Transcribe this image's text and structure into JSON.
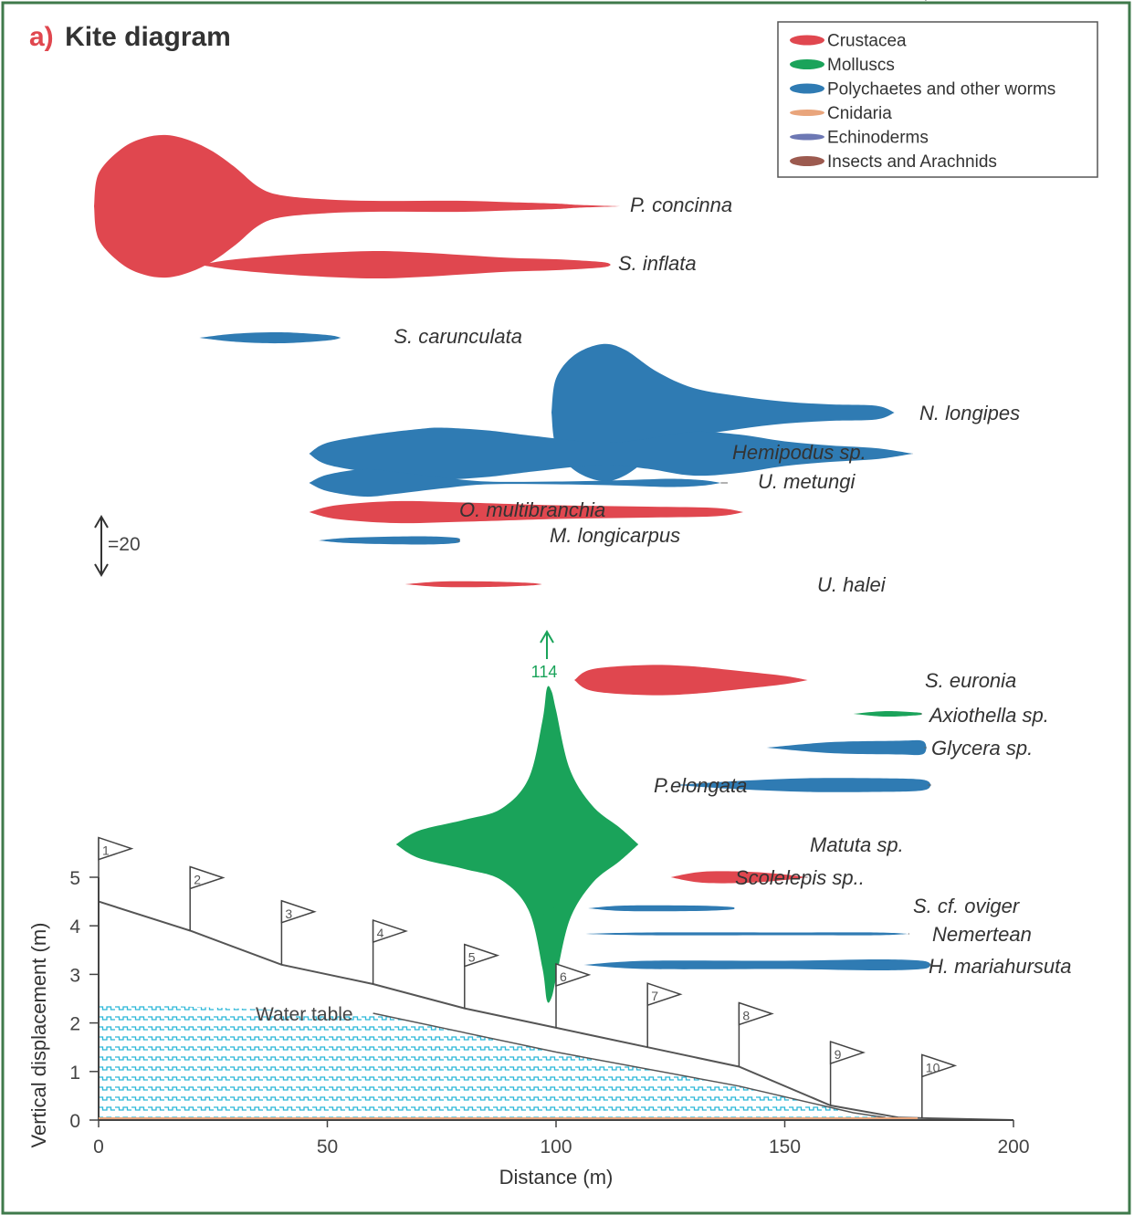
{
  "figure": {
    "panel_letter": "a)",
    "title": "Kite diagram"
  },
  "colors": {
    "Crustacea": "#e0474f",
    "Molluscs": "#1aa35a",
    "Polychaetes and other worms": "#2f7bb3",
    "Cnidaria": "#e9a57c",
    "Echinoderms": "#6d78b4",
    "Insects and Arachnids": "#9c5a4f",
    "water": "#2bb7d8",
    "beach": "#555555",
    "frame": "#3f7a4b"
  },
  "legend": {
    "items": [
      {
        "label": "Crustacea",
        "group": "Crustacea"
      },
      {
        "label": "Molluscs",
        "group": "Molluscs"
      },
      {
        "label": "Polychaetes and other worms",
        "group": "Polychaetes and other worms"
      },
      {
        "label": "Cnidaria",
        "group": "Cnidaria"
      },
      {
        "label": "Echinoderms",
        "group": "Echinoderms"
      },
      {
        "label": "Insects and Arachnids",
        "group": "Insects and Arachnids"
      }
    ]
  },
  "scale_bar": {
    "label": "=20",
    "value": 20
  },
  "max_annotation": {
    "label": "114",
    "species": "P.elongata"
  },
  "water_table_label": "Water table",
  "chart_data": {
    "type": "kite",
    "xlabel": "Distance (m)",
    "ylabel": "Vertical displacement (m)",
    "xlim": [
      0,
      200
    ],
    "ylim": [
      0,
      5
    ],
    "x_ticks": [
      "0",
      "50",
      "100",
      "150",
      "200"
    ],
    "y_ticks": [
      "0",
      "1",
      "2",
      "3",
      "4",
      "5"
    ],
    "species": [
      {
        "label": "P. concinna",
        "group": "Crustacea",
        "profile": [
          [
            -1,
            0
          ],
          [
            0,
            24
          ],
          [
            5,
            42
          ],
          [
            10,
            50
          ],
          [
            15,
            52
          ],
          [
            20,
            48
          ],
          [
            25,
            40
          ],
          [
            30,
            28
          ],
          [
            35,
            14
          ],
          [
            40,
            8
          ],
          [
            50,
            5
          ],
          [
            60,
            4
          ],
          [
            70,
            4
          ],
          [
            80,
            4
          ],
          [
            90,
            3
          ],
          [
            100,
            2
          ],
          [
            105,
            1
          ],
          [
            114,
            0
          ]
        ]
      },
      {
        "label": "S. inflata",
        "group": "Crustacea",
        "profile": [
          [
            22,
            0
          ],
          [
            30,
            4
          ],
          [
            45,
            8
          ],
          [
            60,
            10
          ],
          [
            70,
            9
          ],
          [
            80,
            7
          ],
          [
            90,
            5
          ],
          [
            100,
            4
          ],
          [
            110,
            2
          ],
          [
            112,
            0
          ]
        ]
      },
      {
        "label": "S. carunculata",
        "group": "Polychaetes and other worms",
        "profile": [
          [
            22,
            0
          ],
          [
            30,
            3
          ],
          [
            40,
            4
          ],
          [
            50,
            2
          ],
          [
            53,
            0
          ]
        ]
      },
      {
        "label": "S. carunculata",
        "group": "Polychaetes and other worms",
        "profile": [
          [
            99,
            0
          ],
          [
            100,
            25
          ],
          [
            104,
            42
          ],
          [
            110,
            50
          ],
          [
            115,
            46
          ],
          [
            122,
            30
          ],
          [
            130,
            18
          ],
          [
            140,
            12
          ],
          [
            150,
            8
          ],
          [
            160,
            6
          ],
          [
            170,
            5
          ],
          [
            174,
            0
          ]
        ]
      },
      {
        "label": "N. longipes",
        "group": "Polychaetes and other worms",
        "profile": [
          [
            46,
            0
          ],
          [
            50,
            8
          ],
          [
            60,
            14
          ],
          [
            70,
            18
          ],
          [
            75,
            19
          ],
          [
            85,
            17
          ],
          [
            95,
            13
          ],
          [
            110,
            8
          ],
          [
            120,
            11
          ],
          [
            130,
            16
          ],
          [
            140,
            14
          ],
          [
            150,
            9
          ],
          [
            160,
            6
          ],
          [
            170,
            4
          ],
          [
            178,
            0
          ]
        ]
      },
      {
        "label": "Hemipodus sp.",
        "group": "Polychaetes and other worms",
        "profile": [
          [
            46,
            0
          ],
          [
            50,
            6
          ],
          [
            58,
            10
          ],
          [
            65,
            8
          ],
          [
            75,
            4
          ],
          [
            85,
            1
          ],
          [
            100,
            1
          ],
          [
            115,
            2
          ],
          [
            125,
            3
          ],
          [
            132,
            2
          ],
          [
            136,
            0
          ]
        ]
      },
      {
        "label": "U. metungi",
        "group": "Crustacea",
        "profile": [
          [
            46,
            0
          ],
          [
            52,
            5
          ],
          [
            65,
            8
          ],
          [
            80,
            7
          ],
          [
            100,
            5
          ],
          [
            120,
            4
          ],
          [
            135,
            3
          ],
          [
            141,
            0
          ]
        ]
      },
      {
        "label": "O. multibranchia",
        "group": "Polychaetes and other worms",
        "profile": [
          [
            48,
            0
          ],
          [
            55,
            2
          ],
          [
            70,
            3
          ],
          [
            78,
            2
          ],
          [
            79,
            0
          ]
        ]
      },
      {
        "label": "M. longicarpus",
        "group": "Crustacea",
        "profile": [
          [
            67,
            0
          ],
          [
            75,
            2
          ],
          [
            85,
            2
          ],
          [
            94,
            1
          ],
          [
            97,
            0
          ]
        ]
      },
      {
        "label": "U. halei",
        "group": "Crustacea",
        "profile": [
          [
            104,
            0
          ],
          [
            108,
            8
          ],
          [
            120,
            11
          ],
          [
            130,
            10
          ],
          [
            142,
            6
          ],
          [
            150,
            3
          ],
          [
            155,
            0
          ]
        ]
      },
      {
        "label": "S. euronia",
        "group": "Molluscs",
        "profile": [
          [
            165,
            0
          ],
          [
            172,
            2
          ],
          [
            179,
            1
          ],
          [
            180,
            0
          ]
        ]
      },
      {
        "label": "Axiothella sp.",
        "group": "Polychaetes and other worms",
        "profile": [
          [
            146,
            0
          ],
          [
            160,
            4
          ],
          [
            175,
            5
          ],
          [
            180,
            5
          ],
          [
            181,
            0
          ]
        ]
      },
      {
        "label": "Glycera sp.",
        "group": "Polychaetes and other worms",
        "profile": [
          [
            126,
            0
          ],
          [
            140,
            3
          ],
          [
            155,
            5
          ],
          [
            170,
            5
          ],
          [
            180,
            4
          ],
          [
            182,
            0
          ]
        ]
      },
      {
        "label": "P.elongata",
        "group": "Molluscs",
        "profile": [
          [
            65,
            0
          ],
          [
            70,
            10
          ],
          [
            80,
            18
          ],
          [
            88,
            26
          ],
          [
            94,
            48
          ],
          [
            97,
            90
          ],
          [
            98,
            114
          ],
          [
            99,
            112
          ],
          [
            100,
            98
          ],
          [
            103,
            55
          ],
          [
            108,
            28
          ],
          [
            114,
            12
          ],
          [
            118,
            0
          ]
        ]
      },
      {
        "label": "Matuta sp.",
        "group": "Crustacea",
        "profile": [
          [
            125,
            0
          ],
          [
            132,
            4
          ],
          [
            142,
            4
          ],
          [
            150,
            2
          ],
          [
            155,
            0
          ]
        ]
      },
      {
        "label": "Scolelepis sp..",
        "group": "Polychaetes and other worms",
        "profile": [
          [
            107,
            0
          ],
          [
            115,
            2
          ],
          [
            130,
            2
          ],
          [
            138,
            1
          ],
          [
            139,
            0
          ]
        ]
      },
      {
        "label": "S. cf. oviger",
        "group": "Polychaetes and other worms",
        "profile": [
          [
            106,
            0
          ],
          [
            120,
            1
          ],
          [
            150,
            1
          ],
          [
            170,
            1
          ],
          [
            177,
            0
          ]
        ]
      },
      {
        "label": "Nemertean",
        "group": "Polychaetes and other worms",
        "profile": [
          [
            106,
            0
          ],
          [
            120,
            3
          ],
          [
            150,
            3
          ],
          [
            170,
            4
          ],
          [
            180,
            3
          ],
          [
            182,
            0
          ]
        ]
      },
      {
        "label": "H. mariahursuta",
        "group": "Polychaetes and other worms",
        "profile": [
          [
            166,
            0
          ],
          [
            170,
            3
          ],
          [
            178,
            3
          ],
          [
            181,
            0
          ]
        ]
      }
    ],
    "beach_profile": [
      [
        0,
        4.5
      ],
      [
        20,
        3.9
      ],
      [
        40,
        3.2
      ],
      [
        60,
        2.8
      ],
      [
        80,
        2.3
      ],
      [
        100,
        1.9
      ],
      [
        120,
        1.5
      ],
      [
        140,
        1.1
      ],
      [
        160,
        0.3
      ],
      [
        175,
        0.05
      ],
      [
        200,
        0
      ]
    ],
    "water_table": [
      [
        0,
        2.4
      ],
      [
        60,
        2.2
      ],
      [
        100,
        1.4
      ],
      [
        140,
        0.7
      ],
      [
        165,
        0.15
      ],
      [
        172,
        0.05
      ]
    ],
    "flags": [
      {
        "label": "1",
        "x": 0,
        "y": 4.5
      },
      {
        "label": "2",
        "x": 20,
        "y": 3.9
      },
      {
        "label": "3",
        "x": 40,
        "y": 3.2
      },
      {
        "label": "4",
        "x": 60,
        "y": 2.8
      },
      {
        "label": "5",
        "x": 80,
        "y": 2.3
      },
      {
        "label": "6",
        "x": 100,
        "y": 1.9
      },
      {
        "label": "7",
        "x": 120,
        "y": 1.5
      },
      {
        "label": "8",
        "x": 140,
        "y": 1.1
      },
      {
        "label": "9",
        "x": 160,
        "y": 0.3
      },
      {
        "label": "10",
        "x": 180,
        "y": 0.03
      }
    ]
  }
}
